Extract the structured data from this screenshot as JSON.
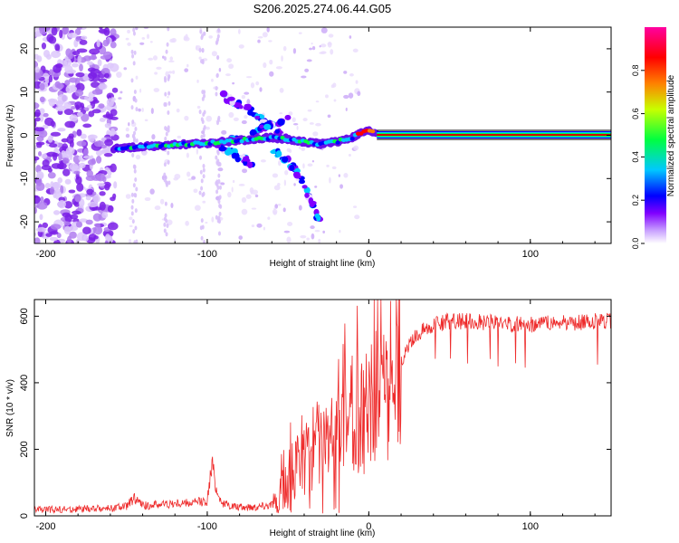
{
  "title": "S206.2025.274.06.44.G05",
  "colors": {
    "snr_line": "#ee2b2b",
    "carrier": "#d90000",
    "scatter": "#8a2be2",
    "axis": "#000000"
  },
  "colorbar": {
    "label": "Normalized spectral amplitude",
    "ticks": [
      "0.0",
      "0.2",
      "0.4",
      "0.6",
      "0.8"
    ],
    "tick_values": [
      0.0,
      0.2,
      0.4,
      0.6,
      0.8
    ],
    "range": [
      0,
      1
    ],
    "colors": [
      "#ffffff",
      "#8000ff",
      "#0000ff",
      "#00c8ff",
      "#00ff40",
      "#c8ff00",
      "#ff8000",
      "#ff0000",
      "#ff00a0"
    ]
  },
  "chart_data": [
    {
      "type": "heatmap",
      "xlabel": "Height of straight line (km)",
      "ylabel": "Frequency (Hz)",
      "xlim": [
        -207,
        150
      ],
      "ylim": [
        -25,
        25
      ],
      "xticks": [
        -200,
        -100,
        0,
        100
      ],
      "xtick_labels": [
        "-200",
        "-100",
        "0",
        "100"
      ],
      "yticks": [
        -20,
        -10,
        0,
        10,
        20
      ],
      "ytick_labels": [
        "-20",
        "-10",
        "0",
        "10",
        "20"
      ],
      "main_trace": {
        "x": [
          -158,
          -150,
          -140,
          -130,
          -120,
          -110,
          -100,
          -90,
          -80,
          -70,
          -60,
          -50,
          -40,
          -30,
          -20,
          -10,
          -5,
          0,
          5
        ],
        "y": [
          -3,
          -3,
          -2.5,
          -2.5,
          -2.2,
          -2,
          -1.8,
          -1.5,
          -1.2,
          -0.8,
          -0.5,
          -1,
          -1.5,
          -2,
          -1.5,
          -0.5,
          0.5,
          1,
          0.5
        ]
      },
      "carrier_line": {
        "x": [
          5,
          150
        ],
        "y": 0.1,
        "amplitude": 1.0
      },
      "branches": [
        {
          "x": [
            -90,
            -80,
            -70,
            -60,
            -50
          ],
          "y": [
            9,
            7,
            5,
            2,
            -1
          ]
        },
        {
          "x": [
            -85,
            -75,
            -65,
            -55,
            -45
          ],
          "y": [
            -1,
            -1,
            2,
            3,
            4
          ]
        },
        {
          "x": [
            -60,
            -50,
            -42,
            -35,
            -30
          ],
          "y": [
            -3,
            -6,
            -10,
            -16,
            -20
          ]
        },
        {
          "x": [
            -95,
            -90,
            -85,
            -80,
            -75,
            -70
          ],
          "y": [
            -2,
            -3,
            -4,
            -5,
            -6,
            -7
          ]
        }
      ],
      "noise_region": {
        "x": [
          -207,
          -157
        ],
        "y": [
          -25,
          25
        ]
      }
    },
    {
      "type": "line",
      "xlabel": "Height of straight line (km)",
      "ylabel": "SNR (10 * v/v)",
      "xlim": [
        -207,
        150
      ],
      "ylim": [
        0,
        650
      ],
      "xticks": [
        -200,
        -100,
        0,
        100
      ],
      "xtick_labels": [
        "-200",
        "-100",
        "0",
        "100"
      ],
      "yticks": [
        0,
        200,
        400,
        600
      ],
      "ytick_labels": [
        "0",
        "200",
        "400",
        "600"
      ],
      "series": [
        {
          "name": "SNR",
          "x": [
            -207,
            -160,
            -150,
            -145,
            -140,
            -130,
            -110,
            -100,
            -97,
            -94,
            -90,
            -80,
            -70,
            -60,
            -55,
            -50,
            -45,
            -40,
            -35,
            -30,
            -23,
            -20,
            -15,
            -10,
            -5,
            0,
            5,
            10,
            15,
            20,
            25,
            30,
            35,
            40,
            50,
            60,
            70,
            80,
            90,
            100,
            110,
            120,
            130,
            140,
            150
          ],
          "y": [
            18,
            22,
            28,
            55,
            30,
            35,
            38,
            45,
            160,
            70,
            35,
            25,
            28,
            35,
            70,
            110,
            150,
            170,
            200,
            220,
            230,
            250,
            270,
            300,
            300,
            330,
            360,
            390,
            420,
            460,
            510,
            545,
            565,
            575,
            585,
            585,
            582,
            580,
            575,
            575,
            578,
            580,
            582,
            585,
            585
          ]
        }
      ]
    }
  ]
}
